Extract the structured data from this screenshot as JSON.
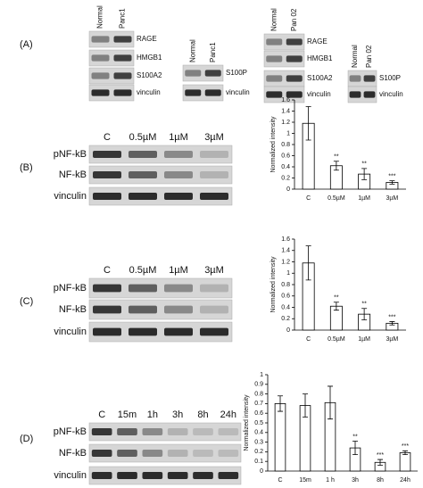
{
  "figure": {
    "A": {
      "label": "(A)",
      "blots": [
        {
          "lanes": [
            "Normal",
            "Panc1"
          ],
          "rows": [
            "RAGE",
            "HMGB1",
            "S100A2",
            "vinculin"
          ]
        },
        {
          "lanes": [
            "Normal",
            "Panc1"
          ],
          "rows": [
            "S100P",
            "vinculin"
          ]
        },
        {
          "lanes": [
            "Normal",
            "Pan 02"
          ],
          "rows": [
            "RAGE",
            "HMGB1",
            "S100A2",
            "vinculin"
          ]
        },
        {
          "lanes": [
            "Normal",
            "Pan 02"
          ],
          "rows": [
            "S100P",
            "vinculin"
          ]
        }
      ]
    },
    "B": {
      "label": "(B)",
      "lanes": [
        "C",
        "0.5µM",
        "1µM",
        "3µM"
      ],
      "rows": [
        "pNF-kB",
        "NF-kB",
        "vinculin"
      ]
    },
    "C": {
      "label": "(C)",
      "lanes": [
        "C",
        "0.5µM",
        "1µM",
        "3µM"
      ],
      "rows": [
        "pNF-kB",
        "NF-kB",
        "vinculin"
      ]
    },
    "D": {
      "label": "(D)",
      "lanes": [
        "C",
        "15m",
        "1h",
        "3h",
        "8h",
        "24h"
      ],
      "rows": [
        "pNF-kB",
        "NF-kB",
        "vinculin"
      ]
    }
  },
  "chart_data": [
    {
      "type": "bar",
      "y_label": "Normalized intensity",
      "categories": [
        "C",
        "0.5µM",
        "1µM",
        "3µM"
      ],
      "values": [
        1.18,
        0.42,
        0.27,
        0.12
      ],
      "errors": [
        0.3,
        0.08,
        0.1,
        0.03
      ],
      "annotations": [
        null,
        "**",
        "**",
        "***"
      ],
      "color": "#ffffff",
      "ylim": [
        0,
        1.6
      ],
      "yticks": [
        0,
        0.2,
        0.4,
        0.6,
        0.8,
        1,
        1.2,
        1.4,
        1.6
      ]
    },
    {
      "type": "bar",
      "y_label": "Normalized intensity",
      "categories": [
        "C",
        "0.5µM",
        "1µM",
        "3µM"
      ],
      "values": [
        1.18,
        0.42,
        0.28,
        0.12
      ],
      "errors": [
        0.3,
        0.07,
        0.1,
        0.03
      ],
      "annotations": [
        null,
        "**",
        "**",
        "***"
      ],
      "color": "#ffffff",
      "ylim": [
        0,
        1.6
      ],
      "yticks": [
        0,
        0.2,
        0.4,
        0.6,
        0.8,
        1,
        1.2,
        1.4,
        1.6
      ]
    },
    {
      "type": "bar",
      "y_label": "Normalized intensity",
      "categories": [
        "C",
        "15m",
        "1 h",
        "3h",
        "8h",
        "24h"
      ],
      "values": [
        0.7,
        0.68,
        0.71,
        0.24,
        0.09,
        0.19
      ],
      "errors": [
        0.08,
        0.12,
        0.17,
        0.07,
        0.03,
        0.02
      ],
      "annotations": [
        null,
        null,
        null,
        "**",
        "***",
        "***"
      ],
      "color": "#ffffff",
      "ylim": [
        0,
        1
      ],
      "yticks": [
        0,
        0.1,
        0.2,
        0.3,
        0.4,
        0.5,
        0.6,
        0.7,
        0.8,
        0.9,
        1
      ]
    }
  ]
}
